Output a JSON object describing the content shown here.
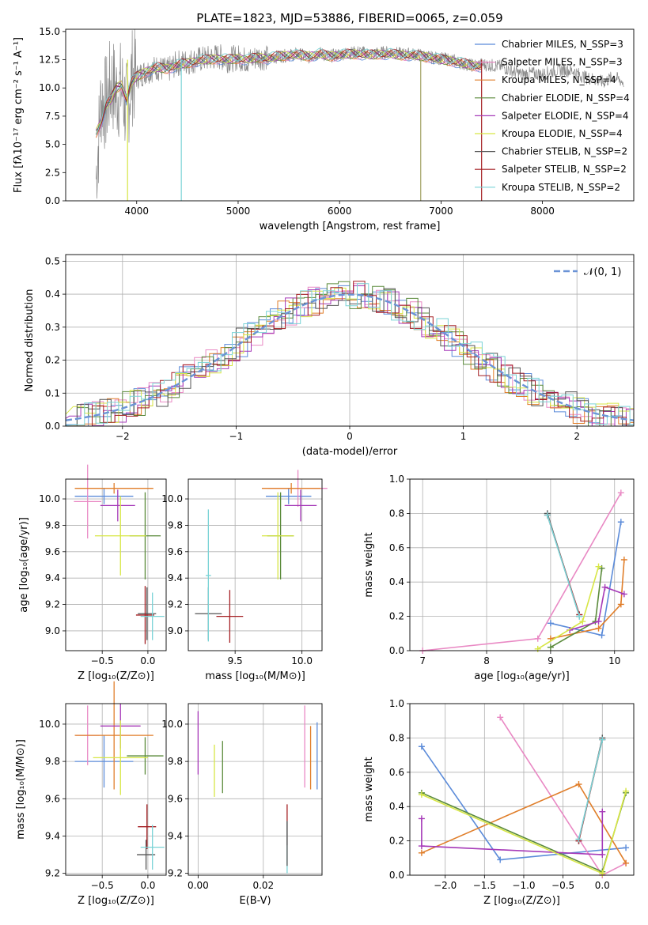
{
  "figure": {
    "title": "PLATE=1823, MJD=53886, FIBERID=0065, z=0.059"
  },
  "colors": {
    "Chabrier MILES": "#5b8bd9",
    "Salpeter MILES": "#e989c4",
    "Kroupa MILES": "#e07e2a",
    "Chabrier ELODIE": "#5a8a3a",
    "Salpeter ELODIE": "#a63ab8",
    "Kroupa ELODIE": "#d7e645",
    "Chabrier STELIB": "#555555",
    "Salpeter STELIB": "#a41e22",
    "Kroupa STELIB": "#7ad3d6",
    "data": "#8a8a8a",
    "normal": "#6b93d6"
  },
  "chart_data": [
    {
      "id": "spectrum",
      "type": "line",
      "xlabel": "wavelength [Angstrom, rest frame]",
      "ylabel": "Flux [fλ10⁻¹⁷ erg cm⁻² s⁻¹ A⁻¹]",
      "xlim": [
        3300,
        8900
      ],
      "ylim": [
        0,
        15.2
      ],
      "xticks": [
        4000,
        5000,
        6000,
        7000,
        8000
      ],
      "yticks": [
        0.0,
        2.5,
        5.0,
        7.5,
        10.0,
        12.5,
        15.0
      ],
      "ytick_labels": [
        "0.0",
        "2.5",
        "5.0",
        "7.5",
        "10.0",
        "12.5",
        "15.0"
      ],
      "legend_position": "right",
      "legend": [
        "Chabrier MILES, N_SSP=3",
        "Salpeter MILES, N_SSP=3",
        "Kroupa MILES, N_SSP=4",
        "Chabrier ELODIE, N_SSP=4",
        "Salpeter ELODIE, N_SSP=4",
        "Kroupa ELODIE, N_SSP=4",
        "Chabrier STELIB, N_SSP=2",
        "Salpeter STELIB, N_SSP=2",
        "Kroupa STELIB, N_SSP=2"
      ],
      "data_curve": [
        [
          3600,
          2.0
        ],
        [
          3650,
          9.0
        ],
        [
          3700,
          8.5
        ],
        [
          3750,
          10.5
        ],
        [
          3800,
          9.5
        ],
        [
          3850,
          10.0
        ],
        [
          3900,
          8.0
        ],
        [
          3950,
          11.0
        ],
        [
          4000,
          11.0
        ],
        [
          4100,
          11.5
        ],
        [
          4200,
          11.8
        ],
        [
          4300,
          11.5
        ],
        [
          4400,
          12.2
        ],
        [
          4500,
          12.3
        ],
        [
          4600,
          12.5
        ],
        [
          4700,
          12.6
        ],
        [
          4800,
          12.8
        ],
        [
          4900,
          12.5
        ],
        [
          5000,
          12.7
        ],
        [
          5100,
          12.4
        ],
        [
          5200,
          12.8
        ],
        [
          5300,
          12.6
        ],
        [
          5400,
          12.8
        ],
        [
          5500,
          12.9
        ],
        [
          5600,
          13.0
        ],
        [
          5700,
          12.7
        ],
        [
          5800,
          13.1
        ],
        [
          5900,
          12.8
        ],
        [
          6000,
          13.0
        ],
        [
          6100,
          13.1
        ],
        [
          6200,
          13.2
        ],
        [
          6300,
          13.0
        ],
        [
          6400,
          13.1
        ],
        [
          6500,
          13.2
        ],
        [
          6600,
          13.0
        ],
        [
          6700,
          13.0
        ],
        [
          6800,
          12.9
        ],
        [
          6900,
          12.7
        ],
        [
          7000,
          12.6
        ],
        [
          7100,
          12.5
        ],
        [
          7200,
          12.2
        ],
        [
          7300,
          12.0
        ],
        [
          7400,
          12.1
        ],
        [
          7500,
          12.0
        ],
        [
          7600,
          11.9
        ],
        [
          7700,
          11.5
        ],
        [
          7800,
          11.2
        ],
        [
          7900,
          11.3
        ],
        [
          8000,
          11.2
        ],
        [
          8100,
          11.5
        ],
        [
          8200,
          11.6
        ],
        [
          8300,
          11.5
        ],
        [
          8400,
          11.0
        ],
        [
          8500,
          10.8
        ],
        [
          8600,
          10.5
        ],
        [
          8700,
          11.0
        ],
        [
          8800,
          10.5
        ]
      ],
      "model_curve": [
        [
          3600,
          6.0
        ],
        [
          3650,
          7.0
        ],
        [
          3700,
          8.5
        ],
        [
          3750,
          9.0
        ],
        [
          3800,
          10.0
        ],
        [
          3850,
          10.3
        ],
        [
          3900,
          9.0
        ],
        [
          3950,
          10.5
        ],
        [
          4000,
          11.0
        ],
        [
          4100,
          11.5
        ],
        [
          4200,
          11.8
        ],
        [
          4300,
          11.7
        ],
        [
          4400,
          12.0
        ],
        [
          4500,
          12.2
        ],
        [
          4600,
          12.4
        ],
        [
          4700,
          12.5
        ],
        [
          4800,
          12.6
        ],
        [
          4900,
          12.5
        ],
        [
          5000,
          12.6
        ],
        [
          5100,
          12.5
        ],
        [
          5200,
          12.7
        ],
        [
          5300,
          12.6
        ],
        [
          5400,
          12.8
        ],
        [
          5500,
          12.9
        ],
        [
          5600,
          12.9
        ],
        [
          5700,
          12.8
        ],
        [
          5800,
          13.0
        ],
        [
          5900,
          12.8
        ],
        [
          6000,
          12.9
        ],
        [
          6100,
          13.0
        ],
        [
          6200,
          13.0
        ],
        [
          6300,
          12.9
        ],
        [
          6400,
          13.0
        ],
        [
          6500,
          13.0
        ],
        [
          6600,
          12.9
        ],
        [
          6700,
          12.9
        ],
        [
          6800,
          12.8
        ],
        [
          6900,
          12.7
        ],
        [
          7000,
          12.5
        ],
        [
          7100,
          12.4
        ],
        [
          7200,
          12.2
        ],
        [
          7300,
          12.0
        ],
        [
          7400,
          11.9
        ]
      ]
    },
    {
      "id": "residuals",
      "type": "bar",
      "xlabel": "(data-model)/error",
      "ylabel": "Normed distribution",
      "xlim": [
        -2.5,
        2.5
      ],
      "ylim": [
        0,
        0.52
      ],
      "xticks": [
        -2,
        -1,
        0,
        1,
        2
      ],
      "xtick_labels": [
        "−2",
        "−1",
        "0",
        "1",
        "2"
      ],
      "yticks": [
        0.0,
        0.1,
        0.2,
        0.3,
        0.4,
        0.5
      ],
      "ytick_labels": [
        "0.0",
        "0.1",
        "0.2",
        "0.3",
        "0.4",
        "0.5"
      ],
      "grid": true,
      "legend": [
        "𝒩(0, 1)"
      ],
      "legend_position": "top-right"
    },
    {
      "id": "age_vs_Z",
      "type": "scatter",
      "xlabel": "Z [log₁₀(Z/Z⊙)]",
      "ylabel": "age  [log₁₀(age/yr)]",
      "xlim": [
        -0.9,
        0.2
      ],
      "ylim": [
        8.85,
        10.15
      ],
      "xticks": [
        -0.5,
        0.0
      ],
      "xtick_labels": [
        "−0.5",
        "0.0"
      ],
      "yticks": [
        9.0,
        9.2,
        9.4,
        9.6,
        9.8,
        10.0
      ],
      "ytick_labels": [
        "9.0",
        "9.2",
        "9.4",
        "9.6",
        "9.8",
        "10.0"
      ],
      "grid": true
    },
    {
      "id": "age_vs_mass",
      "type": "scatter",
      "xlabel": "mass [log₁₀(M/M⊙)]",
      "xlim": [
        9.15,
        10.15
      ],
      "ylim": [
        8.85,
        10.15
      ],
      "xticks": [
        9.5,
        10.0
      ],
      "xtick_labels": [
        "9.5",
        "10.0"
      ],
      "yticks": [
        9.0,
        9.2,
        9.4,
        9.6,
        9.8,
        10.0
      ],
      "ytick_labels": [
        "9.0",
        "9.2",
        "9.4",
        "9.6",
        "9.8",
        "10.0"
      ],
      "grid": true
    },
    {
      "id": "massweight_vs_age",
      "type": "line",
      "xlabel": "age  [log₁₀(age/yr)]",
      "ylabel": "mass weight",
      "xlim": [
        6.8,
        10.3
      ],
      "ylim": [
        0,
        1.0
      ],
      "xticks": [
        7,
        8,
        9,
        10
      ],
      "xtick_labels": [
        "7",
        "8",
        "9",
        "10"
      ],
      "yticks": [
        0.0,
        0.2,
        0.4,
        0.6,
        0.8,
        1.0
      ],
      "ytick_labels": [
        "0.0",
        "0.2",
        "0.4",
        "0.6",
        "0.8",
        "1.0"
      ],
      "grid": true,
      "series": [
        {
          "model": "Chabrier MILES",
          "points": [
            [
              10.1,
              0.75
            ],
            [
              9.8,
              0.09
            ],
            [
              9.0,
              0.16
            ]
          ]
        },
        {
          "model": "Salpeter MILES",
          "points": [
            [
              10.1,
              0.92
            ],
            [
              8.8,
              0.07
            ],
            [
              7.0,
              0.0
            ]
          ]
        },
        {
          "model": "Kroupa MILES",
          "points": [
            [
              10.15,
              0.53
            ],
            [
              10.1,
              0.27
            ],
            [
              9.75,
              0.13
            ],
            [
              9.0,
              0.07
            ]
          ]
        },
        {
          "model": "Chabrier ELODIE",
          "points": [
            [
              9.8,
              0.48
            ],
            [
              9.7,
              0.17
            ],
            [
              9.0,
              0.02
            ]
          ]
        },
        {
          "model": "Salpeter ELODIE",
          "points": [
            [
              10.15,
              0.33
            ],
            [
              9.85,
              0.37
            ],
            [
              9.75,
              0.17
            ],
            [
              9.3,
              0.12
            ]
          ]
        },
        {
          "model": "Kroupa ELODIE",
          "points": [
            [
              9.75,
              0.49
            ],
            [
              9.5,
              0.17
            ],
            [
              8.8,
              0.01
            ]
          ]
        },
        {
          "model": "Chabrier STELIB",
          "points": [
            [
              8.95,
              0.8
            ],
            [
              9.45,
              0.2
            ]
          ]
        },
        {
          "model": "Salpeter STELIB",
          "points": [
            [
              8.95,
              0.79
            ],
            [
              9.45,
              0.21
            ]
          ]
        },
        {
          "model": "Kroupa STELIB",
          "points": [
            [
              8.95,
              0.79
            ],
            [
              9.45,
              0.2
            ]
          ]
        }
      ]
    },
    {
      "id": "mass_vs_Z",
      "type": "scatter",
      "xlabel": "Z [log₁₀(Z/Z⊙)]",
      "ylabel": "mass [log₁₀(M/M⊙)]",
      "xlim": [
        -0.9,
        0.2
      ],
      "ylim": [
        9.19,
        10.11
      ],
      "xticks": [
        -0.5,
        0.0
      ],
      "xtick_labels": [
        "−0.5",
        "0.0"
      ],
      "yticks": [
        9.2,
        9.4,
        9.6,
        9.8,
        10.0
      ],
      "ytick_labels": [
        "9.2",
        "9.4",
        "9.6",
        "9.8",
        "10.0"
      ],
      "grid": true
    },
    {
      "id": "mass_vs_EBV",
      "type": "scatter",
      "xlabel": "E(B-V)",
      "xlim": [
        -0.003,
        0.038
      ],
      "ylim": [
        9.19,
        10.11
      ],
      "xticks": [
        0.0,
        0.02
      ],
      "xtick_labels": [
        "0.00",
        "0.02"
      ],
      "yticks": [
        9.2,
        9.4,
        9.6,
        9.8,
        10.0
      ],
      "ytick_labels": [
        "9.2",
        "9.4",
        "9.6",
        "9.8",
        "10.0"
      ],
      "grid": true
    },
    {
      "id": "massweight_vs_Z",
      "type": "line",
      "xlabel": "Z [log₁₀(Z/Z⊙)]",
      "ylabel": "mass weight",
      "xlim": [
        -2.45,
        0.4
      ],
      "ylim": [
        0,
        1.0
      ],
      "xticks": [
        -2.0,
        -1.5,
        -1.0,
        -0.5,
        0.0
      ],
      "xtick_labels": [
        "−2.0",
        "−1.5",
        "−1.0",
        "−0.5",
        "0.0"
      ],
      "yticks": [
        0.0,
        0.2,
        0.4,
        0.6,
        0.8,
        1.0
      ],
      "ytick_labels": [
        "0.0",
        "0.2",
        "0.4",
        "0.6",
        "0.8",
        "1.0"
      ],
      "grid": true,
      "series": [
        {
          "model": "Chabrier MILES",
          "points": [
            [
              -2.3,
              0.75
            ],
            [
              -1.3,
              0.09
            ],
            [
              0.3,
              0.16
            ]
          ]
        },
        {
          "model": "Salpeter MILES",
          "points": [
            [
              -1.3,
              0.92
            ],
            [
              0.0,
              0.0
            ],
            [
              0.3,
              0.07
            ]
          ]
        },
        {
          "model": "Kroupa MILES",
          "points": [
            [
              -2.3,
              0.13
            ],
            [
              -0.3,
              0.53
            ],
            [
              0.3,
              0.07
            ]
          ]
        },
        {
          "model": "Chabrier ELODIE",
          "points": [
            [
              -2.3,
              0.48
            ],
            [
              0.0,
              0.02
            ],
            [
              0.3,
              0.48
            ]
          ]
        },
        {
          "model": "Salpeter ELODIE",
          "points": [
            [
              -2.3,
              0.33
            ],
            [
              -2.3,
              0.17
            ],
            [
              0.0,
              0.12
            ],
            [
              0.0,
              0.37
            ]
          ]
        },
        {
          "model": "Kroupa ELODIE",
          "points": [
            [
              -2.3,
              0.47
            ],
            [
              0.0,
              0.01
            ],
            [
              0.3,
              0.49
            ]
          ]
        },
        {
          "model": "Chabrier STELIB",
          "points": [
            [
              -0.3,
              0.2
            ],
            [
              0.0,
              0.8
            ]
          ]
        },
        {
          "model": "Salpeter STELIB",
          "points": [
            [
              -0.3,
              0.2
            ],
            [
              0.0,
              0.79
            ]
          ]
        },
        {
          "model": "Kroupa STELIB",
          "points": [
            [
              -0.3,
              0.21
            ],
            [
              0.0,
              0.79
            ]
          ]
        }
      ]
    }
  ]
}
